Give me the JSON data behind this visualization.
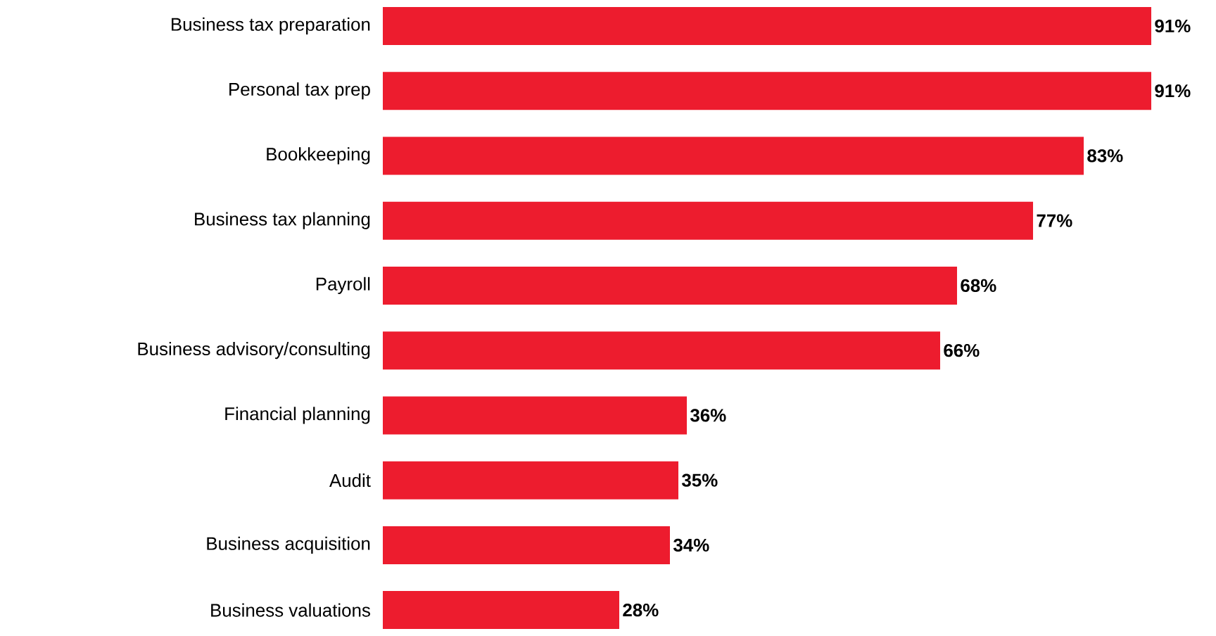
{
  "chart_data": {
    "type": "bar",
    "orientation": "horizontal",
    "categories": [
      "Business tax preparation",
      "Personal tax prep",
      "Bookkeeping",
      "Business tax planning",
      "Payroll",
      "Business advisory/consulting",
      "Financial planning",
      "Audit",
      "Business acquisition",
      "Business valuations"
    ],
    "values": [
      91,
      91,
      83,
      77,
      68,
      66,
      36,
      35,
      34,
      28
    ],
    "value_labels": [
      "91%",
      "91%",
      "83%",
      "77%",
      "68%",
      "66%",
      "36%",
      "35%",
      "34%",
      "28%"
    ],
    "color": "#ed1c2e",
    "tick_labels": "y"
  }
}
